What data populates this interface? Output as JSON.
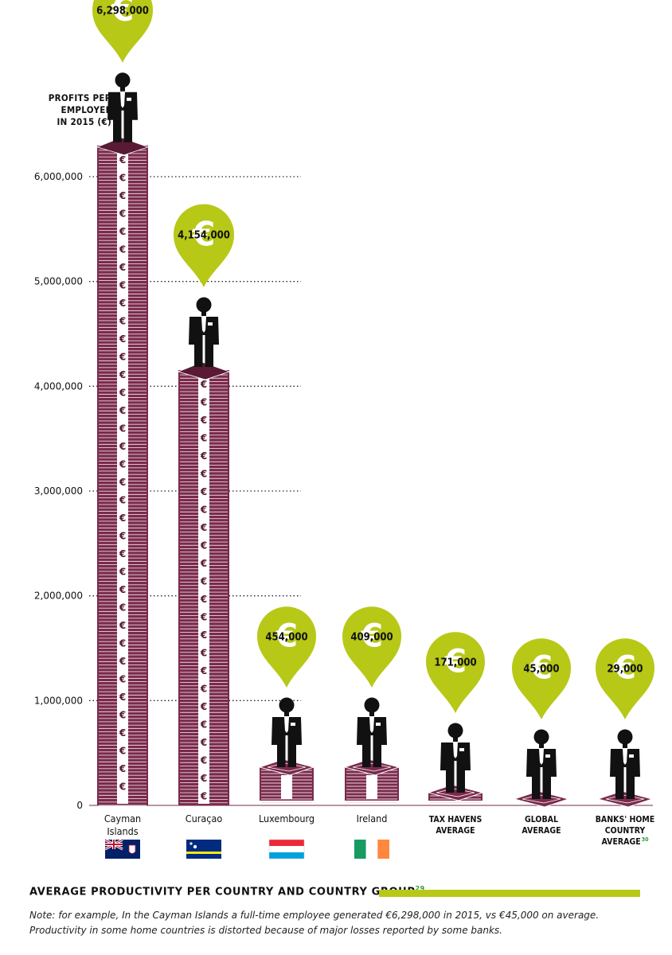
{
  "chart_data": {
    "type": "bar",
    "ylabel": [
      "PROFITS PER",
      "EMPLOYEE",
      "IN 2015 (€)"
    ],
    "ylim": [
      0,
      6000000
    ],
    "yticks": [
      "0",
      "1,000,000",
      "2,000,000",
      "3,000,000",
      "4,000,000",
      "5,000,000",
      "6,000,000"
    ],
    "ytick_values": [
      0,
      1000000,
      2000000,
      3000000,
      4000000,
      5000000,
      6000000
    ],
    "grid": true,
    "categories": [
      [
        "Cayman",
        "Islands"
      ],
      [
        "Curaçao"
      ],
      [
        "Luxembourg"
      ],
      [
        "Ireland"
      ],
      [
        "TAX HAVENS",
        "AVERAGE"
      ],
      [
        "GLOBAL",
        "AVERAGE"
      ],
      [
        "BANKS' HOME",
        "COUNTRY",
        "AVERAGE"
      ]
    ],
    "values": [
      6298000,
      4154000,
      454000,
      409000,
      171000,
      45000,
      29000
    ],
    "value_labels": [
      "6,298,000",
      "4,154,000",
      "454,000",
      "409,000",
      "171,000",
      "45,000",
      "29,000"
    ],
    "footnote_marks": [
      "",
      "",
      "",
      "",
      "",
      "",
      "30"
    ],
    "flags": [
      "cayman-islands",
      "curacao",
      "luxembourg",
      "ireland",
      "",
      "",
      ""
    ]
  },
  "colors": {
    "stack": "#7a2a4c",
    "stack_dark": "#5a1a35",
    "pin": "#b7c817",
    "person": "#111111",
    "accent": "#b7c817",
    "footnote_mark": "#2f9a3a"
  },
  "footer": {
    "title": "AVERAGE PRODUCTIVITY PER COUNTRY AND COUNTRY GROUP",
    "footnote": "29",
    "note": "Note: for example, In the Cayman Islands a full-time employee generated €6,298,000 in 2015, vs €45,000 on average. Productivity in some home countries is distorted because of major losses reported by some banks."
  }
}
